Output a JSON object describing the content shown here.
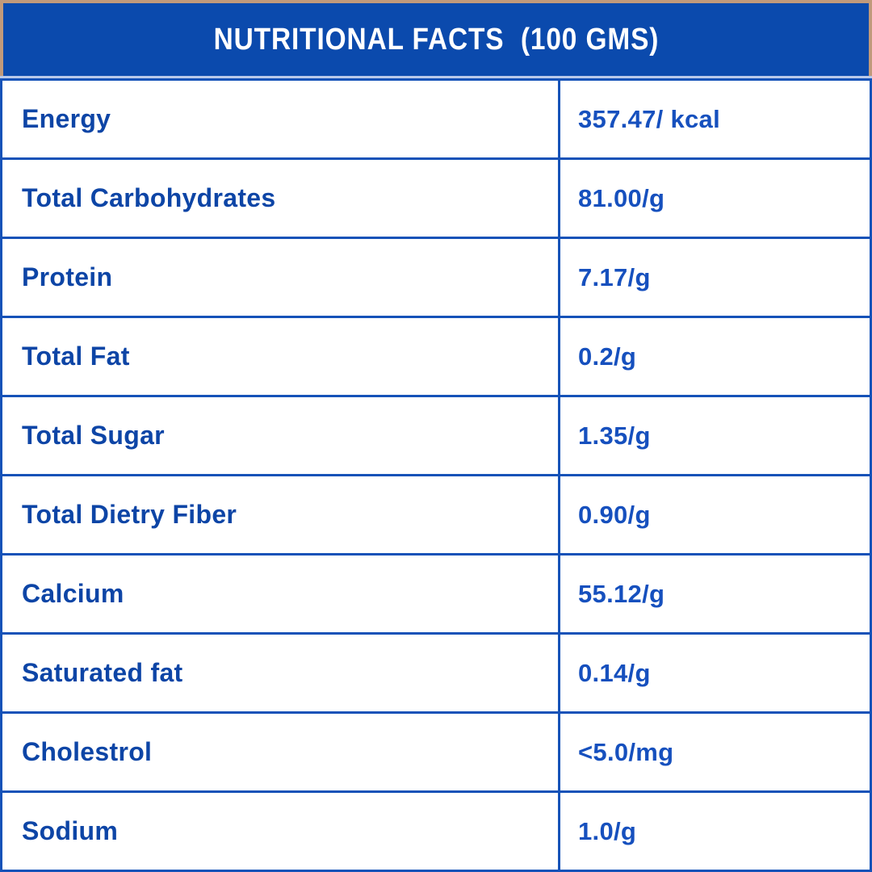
{
  "header": {
    "title": "NUTRITIONAL FACTS  (100 GMS)"
  },
  "table": {
    "rows": [
      {
        "label": "Energy",
        "value": "357.47/ kcal"
      },
      {
        "label": "Total Carbohydrates",
        "value": "81.00/g"
      },
      {
        "label": "Protein",
        "value": "7.17/g"
      },
      {
        "label": "Total Fat",
        "value": "0.2/g"
      },
      {
        "label": "Total Sugar",
        "value": "1.35/g"
      },
      {
        "label": "Total Dietry Fiber",
        "value": "0.90/g"
      },
      {
        "label": "Calcium",
        "value": "55.12/g"
      },
      {
        "label": "Saturated fat",
        "value": "0.14/g"
      },
      {
        "label": "Cholestrol",
        "value": "<5.0/mg"
      },
      {
        "label": "Sodium",
        "value": "1.0/g"
      }
    ]
  },
  "colors": {
    "header_background": "#0b4aad",
    "frame_tan": "#c19a7b",
    "border_blue": "#1552b8",
    "label_text": "#0d45a6",
    "value_text": "#1650be",
    "header_text": "#ffffff",
    "header_underline": "#b9c9ea"
  }
}
